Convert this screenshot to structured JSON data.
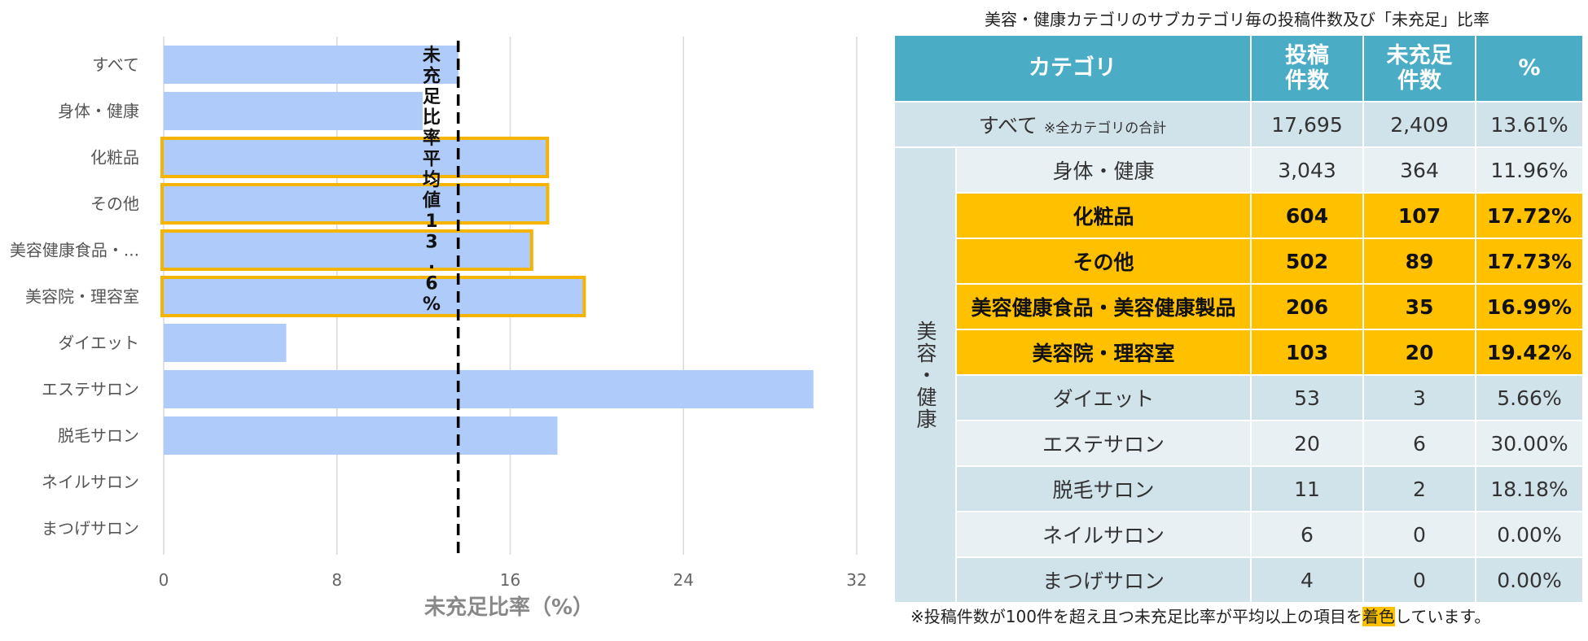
{
  "chart_data": {
    "type": "bar",
    "orientation": "horizontal",
    "categories": [
      "すべて",
      "身体・健康",
      "化粧品",
      "その他",
      "美容健康食品・...",
      "美容院・理容室",
      "ダイエット",
      "エステサロン",
      "脱毛サロン",
      "ネイルサロン",
      "まつげサロン"
    ],
    "values": [
      13.61,
      11.96,
      17.72,
      17.73,
      16.99,
      19.42,
      5.66,
      30.0,
      18.18,
      0.0,
      0.0
    ],
    "highlighted": [
      false,
      false,
      true,
      true,
      true,
      true,
      false,
      false,
      false,
      false,
      false
    ],
    "xlabel": "未充足比率（%）",
    "xlim": [
      0,
      32
    ],
    "xticks": [
      0,
      8,
      16,
      24,
      32
    ],
    "reference_value": 13.6,
    "reference_label": "未充足比率平均値13.6%",
    "bar_color": "#aecbfa",
    "highlight_border_color": "#f4b400",
    "grid_color": "#d9d9d9",
    "reference_line_color": "#000000"
  },
  "table": {
    "title": "美容・健康カテゴリのサブカテゴリ毎の投稿件数及び「未充足」比率",
    "headers": {
      "category": "カテゴリ",
      "posts_line1": "投稿",
      "posts_line2": "件数",
      "unmet_line1": "未充足",
      "unmet_line2": "件数",
      "pct": "%"
    },
    "total_row": {
      "label": "すべて",
      "note": "※全カテゴリの合計",
      "posts": "17,695",
      "unmet": "2,409",
      "pct": "13.61%"
    },
    "group_label": "美容・健康",
    "rows": [
      {
        "category": "身体・健康",
        "posts": "3,043",
        "unmet": "364",
        "pct": "11.96%"
      },
      {
        "category": "化粧品",
        "posts": "604",
        "unmet": "107",
        "pct": "17.72%"
      },
      {
        "category": "その他",
        "posts": "502",
        "unmet": "89",
        "pct": "17.73%"
      },
      {
        "category": "美容健康食品・美容健康製品",
        "posts": "206",
        "unmet": "35",
        "pct": "16.99%"
      },
      {
        "category": "美容院・理容室",
        "posts": "103",
        "unmet": "20",
        "pct": "19.42%"
      },
      {
        "category": "ダイエット",
        "posts": "53",
        "unmet": "3",
        "pct": "5.66%"
      },
      {
        "category": "エステサロン",
        "posts": "20",
        "unmet": "6",
        "pct": "30.00%"
      },
      {
        "category": "脱毛サロン",
        "posts": "11",
        "unmet": "2",
        "pct": "18.18%"
      },
      {
        "category": "ネイルサロン",
        "posts": "6",
        "unmet": "0",
        "pct": "0.00%"
      },
      {
        "category": "まつげサロン",
        "posts": "4",
        "unmet": "0",
        "pct": "0.00%"
      }
    ],
    "header_color": "#4bacc6",
    "highlight_color": "#ffc000",
    "footnote": {
      "before": "※投稿件数が100件を超え且つ未充足比率が平均以上の項目を",
      "highlight": "着色",
      "after": "しています。"
    }
  }
}
